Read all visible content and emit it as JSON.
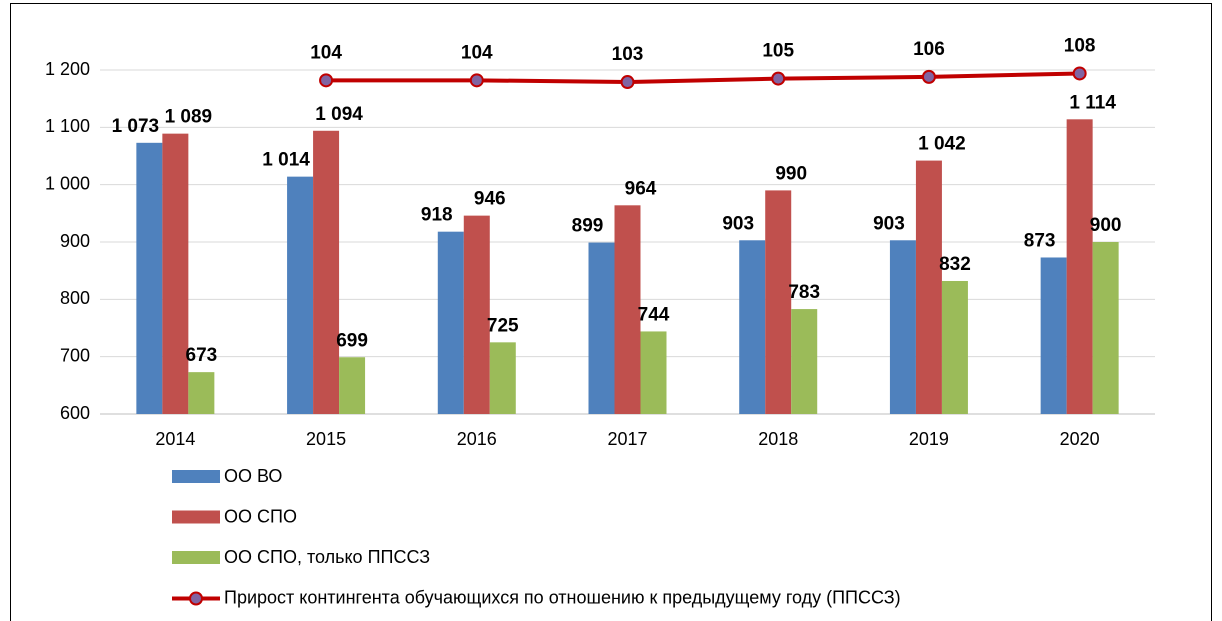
{
  "chart_data": {
    "type": "bar",
    "categories": [
      "2014",
      "2015",
      "2016",
      "2017",
      "2018",
      "2019",
      "2020"
    ],
    "ylim": [
      600,
      1200
    ],
    "yticks": [
      600,
      700,
      800,
      900,
      {
        "value": 1000,
        "label": "1 000"
      },
      {
        "value": 1100,
        "label": "1 100"
      },
      {
        "value": 1200,
        "label": "1 200"
      }
    ],
    "y2lim": [
      -90,
      110
    ],
    "grid": true,
    "legend": "bottom",
    "series": [
      {
        "name": "ОО ВО",
        "color": "#4f81bd",
        "values": [
          1073,
          1014,
          918,
          899,
          903,
          903,
          873
        ],
        "value_labels": [
          "1 073",
          "1 014",
          "918",
          "899",
          "903",
          "903",
          "873"
        ]
      },
      {
        "name": "ОО СПО",
        "color": "#c0504d",
        "values": [
          1089,
          1094,
          946,
          964,
          990,
          1042,
          1114
        ],
        "value_labels": [
          "1 089",
          "1 094",
          "946",
          "964",
          "990",
          "1 042",
          "1 114"
        ]
      },
      {
        "name": "ОО СПО, только ППССЗ",
        "color": "#9bbb59",
        "values": [
          673,
          699,
          725,
          744,
          783,
          832,
          900
        ]
      },
      {
        "name": "Прирост контингента обучающихся по отношению к предыдущему году (ППССЗ)",
        "color": "#c00000",
        "type": "line",
        "axis": "y2",
        "values": [
          null,
          104,
          104,
          103,
          105,
          106,
          108
        ]
      }
    ]
  }
}
